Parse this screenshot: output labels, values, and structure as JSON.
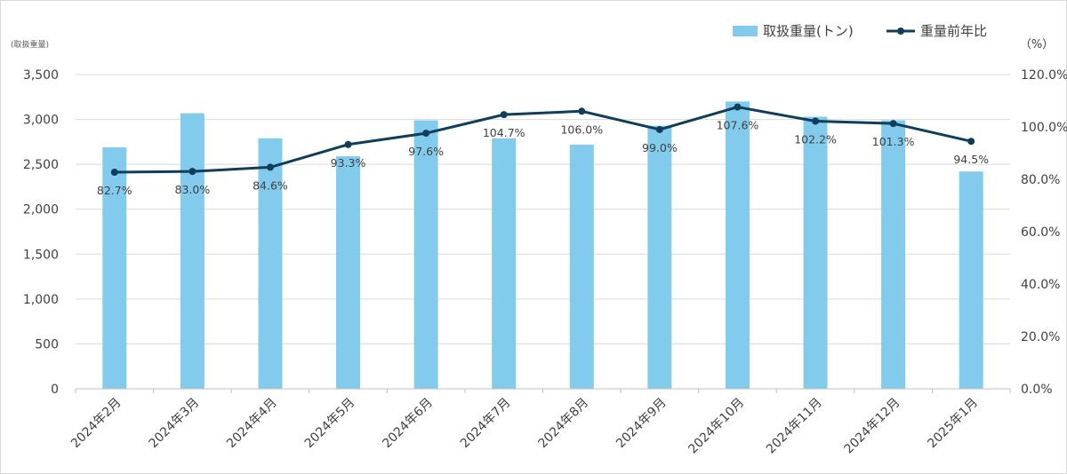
{
  "chart_data": {
    "type": "bar",
    "categories": [
      "2024年2月",
      "2024年3月",
      "2024年4月",
      "2024年5月",
      "2024年6月",
      "2024年7月",
      "2024年8月",
      "2024年9月",
      "2024年10月",
      "2024年11月",
      "2024年12月",
      "2025年1月"
    ],
    "series": [
      {
        "name": "取扱重量(トン)",
        "type": "bar",
        "axis": "left",
        "color": "#82cbec",
        "values": [
          2690,
          3070,
          2790,
          2590,
          2990,
          2790,
          2720,
          2930,
          3200,
          3030,
          2990,
          2420
        ]
      },
      {
        "name": "重量前年比",
        "type": "line",
        "axis": "right",
        "color": "#0f3e5c",
        "values": [
          82.7,
          83.0,
          84.6,
          93.3,
          97.6,
          104.7,
          106.0,
          99.0,
          107.6,
          102.2,
          101.3,
          94.5
        ],
        "labels": [
          "82.7%",
          "83.0%",
          "84.6%",
          "93.3%",
          "97.6%",
          "104.7%",
          "106.0%",
          "99.0%",
          "107.6%",
          "102.2%",
          "101.3%",
          "94.5%"
        ]
      }
    ],
    "y_left": {
      "unit_label": "(取扱重量)",
      "range": [
        0,
        3500
      ],
      "ticks": [
        0,
        500,
        1000,
        1500,
        2000,
        2500,
        3000,
        3500
      ],
      "tick_labels": [
        "0",
        "500",
        "1,000",
        "1,500",
        "2,000",
        "2,500",
        "3,000",
        "3,500"
      ]
    },
    "y_right": {
      "unit_label": "（%）",
      "range": [
        0,
        120
      ],
      "ticks": [
        0,
        20,
        40,
        60,
        80,
        100,
        120
      ],
      "tick_labels": [
        "0.0%",
        "20.0%",
        "40.0%",
        "60.0%",
        "80.0%",
        "100.0%",
        "120.0%"
      ]
    },
    "legend": {
      "position": "top-right"
    },
    "grid": true
  }
}
